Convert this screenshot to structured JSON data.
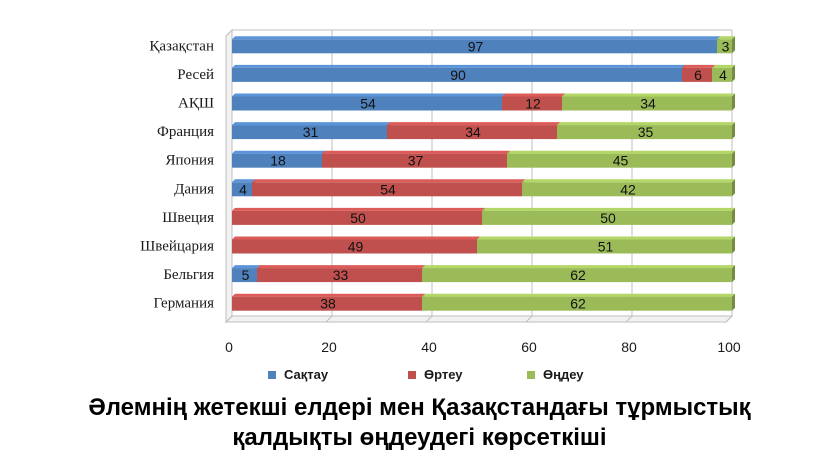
{
  "chart_data": {
    "type": "bar",
    "orientation": "horizontal",
    "stacked": true,
    "title_lines": [
      "Әлемнің жетекші елдері мен Қазақстандағы тұрмыстық",
      "қалдықты өңдеудегі көрсеткіші"
    ],
    "categories": [
      "Қазақстан",
      "Ресей",
      "АҚШ",
      "Франция",
      "Япония",
      "Дания",
      "Швеция",
      "Швейцария",
      "Бельгия",
      "Германия"
    ],
    "series": [
      {
        "name": "Сақтау",
        "color": "#4f81bd",
        "values": [
          97,
          90,
          54,
          31,
          18,
          4,
          0,
          0,
          5,
          0
        ]
      },
      {
        "name": "Өртеу",
        "color": "#c0504d",
        "values": [
          0,
          6,
          12,
          34,
          37,
          54,
          50,
          49,
          33,
          38
        ]
      },
      {
        "name": "Өңдеу",
        "color": "#9bbb59",
        "values": [
          3,
          4,
          34,
          35,
          45,
          42,
          50,
          51,
          62,
          62
        ]
      }
    ],
    "xlim": [
      0,
      100
    ],
    "xticks": [
      "0",
      "20",
      "40",
      "60",
      "80",
      "100"
    ],
    "grid": true,
    "legend_position": "bottom"
  }
}
